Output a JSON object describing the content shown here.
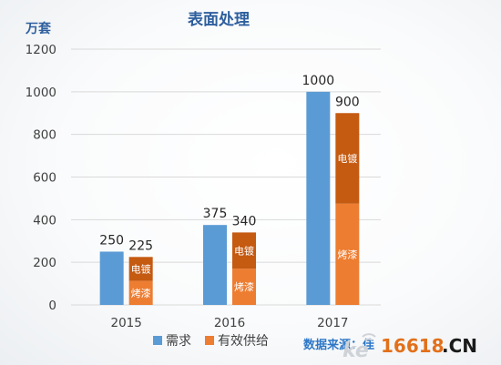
{
  "chart_data": {
    "type": "bar",
    "title": "表面处理",
    "ylabel": "万套",
    "ylim": [
      0,
      1200
    ],
    "yticks": [
      0,
      200,
      400,
      600,
      800,
      1000,
      1200
    ],
    "categories": [
      "2015",
      "2016",
      "2017"
    ],
    "series": [
      {
        "name": "需求",
        "values": [
          250,
          375,
          1000
        ],
        "color": "#5b9bd5"
      },
      {
        "name": "有效供给",
        "values": [
          225,
          340,
          900
        ],
        "stacked": [
          {
            "name": "烤漆",
            "values": [
              112.5,
              170,
              475
            ],
            "color": "#ed7d31"
          },
          {
            "name": "电镀",
            "values": [
              112.5,
              170,
              425
            ],
            "color": "#c55a11"
          }
        ]
      }
    ],
    "grid": true,
    "legend": "bottom",
    "source_text": "数据来源：佳",
    "watermark_text": "16618",
    "watermark_suffix": ".CN"
  }
}
